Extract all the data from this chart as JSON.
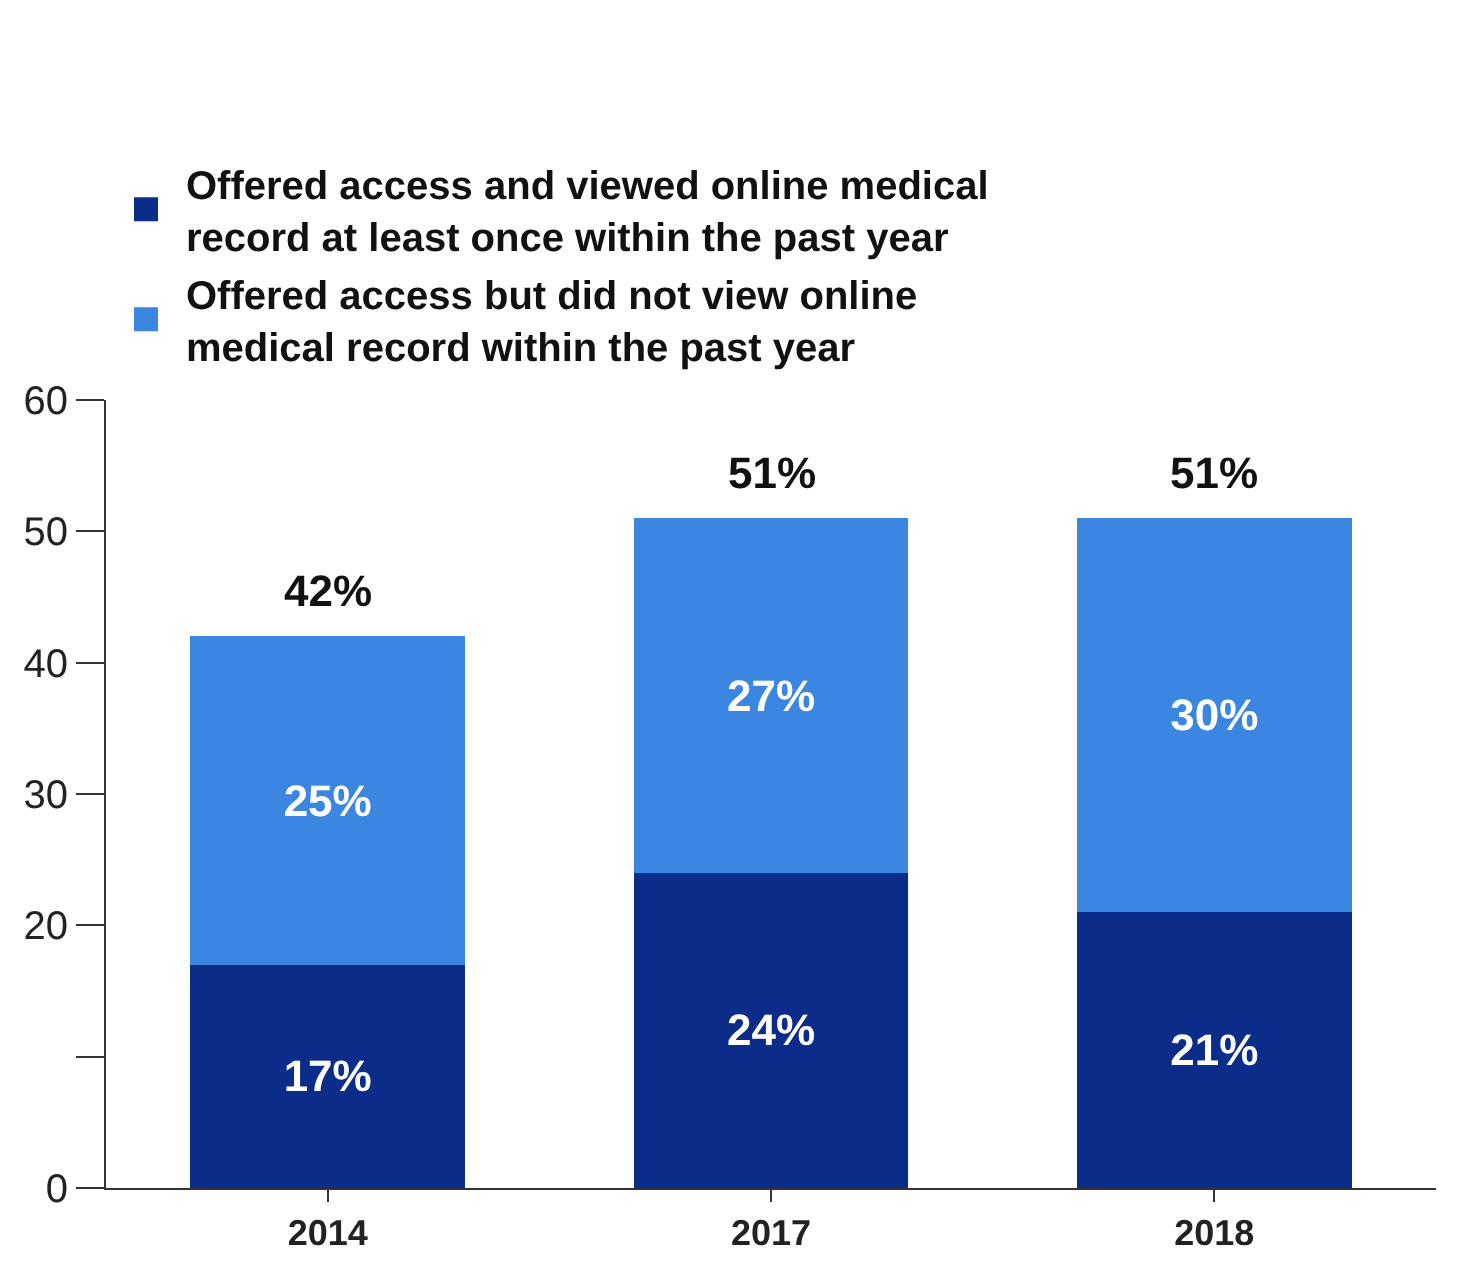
{
  "chart_data": {
    "type": "bar",
    "stacked": true,
    "categories": [
      "2014",
      "2017",
      "2018"
    ],
    "series": [
      {
        "name": "Offered access and viewed online medical record at least once within the past year",
        "color": "#0b2c88",
        "values": [
          17,
          24,
          21
        ],
        "value_labels": [
          "17%",
          "24%",
          "21%"
        ]
      },
      {
        "name": "Offered access but did not view online medical record within the past year",
        "color": "#3a86e0",
        "values": [
          25,
          27,
          30
        ],
        "value_labels": [
          "25%",
          "27%",
          "30%"
        ]
      }
    ],
    "totals": [
      "42%",
      "51%",
      "51%"
    ],
    "ylim": [
      0,
      60
    ],
    "yticks": [
      0,
      {
        "value": 10,
        "label": null
      },
      20,
      30,
      40,
      50,
      60
    ],
    "grid": false,
    "legend": "top"
  }
}
